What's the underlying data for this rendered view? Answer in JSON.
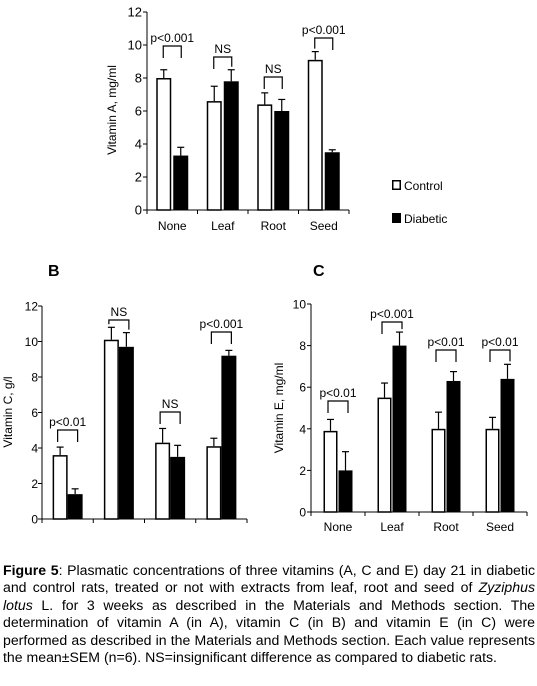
{
  "chart_data": [
    {
      "type": "bar",
      "panel_label": "",
      "categories": [
        "None",
        "Leaf",
        "Root",
        "Seed"
      ],
      "ylabel": "Vitamin A, mg/ml",
      "ylim": [
        0,
        12
      ],
      "yticks": [
        "0",
        "2",
        "4",
        "6",
        "8",
        "10",
        "12"
      ],
      "series": [
        {
          "name": "Control",
          "values": [
            8.0,
            6.6,
            6.4,
            9.1
          ],
          "errors": [
            0.5,
            0.9,
            0.7,
            0.5
          ],
          "color": "#ffffff"
        },
        {
          "name": "Diabetic",
          "values": [
            3.3,
            7.8,
            6.0,
            3.5
          ],
          "errors": [
            0.5,
            0.7,
            0.7,
            0.15
          ],
          "color": "#000000"
        }
      ],
      "annotations": [
        "p<0.001",
        "NS",
        "NS",
        "p<0.001"
      ],
      "legend": "right"
    },
    {
      "type": "bar",
      "panel_label": "B",
      "categories": [
        "None",
        "Leaf",
        "Root",
        "Seed"
      ],
      "ylabel": "Vitamin C, g/l",
      "ylim": [
        0,
        12
      ],
      "yticks": [
        "0",
        "2",
        "4",
        "6",
        "8",
        "10",
        "12"
      ],
      "series": [
        {
          "name": "Control",
          "values": [
            3.6,
            10.1,
            4.3,
            4.1
          ],
          "errors": [
            0.45,
            0.7,
            0.8,
            0.45
          ],
          "color": "#ffffff"
        },
        {
          "name": "Diabetic",
          "values": [
            1.4,
            9.7,
            3.5,
            9.2
          ],
          "errors": [
            0.3,
            0.8,
            0.65,
            0.3
          ],
          "color": "#000000"
        }
      ],
      "annotations": [
        "p<0.01",
        "NS",
        "NS",
        "p<0.001"
      ]
    },
    {
      "type": "bar",
      "panel_label": "C",
      "categories": [
        "None",
        "Leaf",
        "Root",
        "Seed"
      ],
      "ylabel": "Vitamin E, mg/ml",
      "ylim": [
        0,
        10
      ],
      "yticks": [
        "0",
        "2",
        "4",
        "6",
        "8",
        "10"
      ],
      "series": [
        {
          "name": "Control",
          "values": [
            3.9,
            5.5,
            4.0,
            4.0
          ],
          "errors": [
            0.55,
            0.7,
            0.8,
            0.55
          ],
          "color": "#ffffff"
        },
        {
          "name": "Diabetic",
          "values": [
            2.0,
            8.0,
            6.3,
            6.4
          ],
          "errors": [
            0.9,
            0.65,
            0.45,
            0.7
          ],
          "color": "#000000"
        }
      ],
      "annotations": [
        "p<0.01",
        "p<0.001",
        "p<0.01",
        "p<0.01"
      ]
    }
  ],
  "caption": {
    "label": "Figure 5",
    "text_1": ": Plasmatic concentrations of three vitamins (A, C and E) day 21 in diabetic and control rats, treated or not with extracts from leaf, root and seed of ",
    "species": "Zyziphus lotus",
    "text_2": " L. for 3 weeks as described in the Materials and Methods section. The determination of vitamin A (in A), vitamin C (in B) and vitamin E (in C) were performed as described in the Materials and Methods section. Each value represents the mean±SEM (n=6). NS=insignificant difference as compared to diabetic rats."
  }
}
